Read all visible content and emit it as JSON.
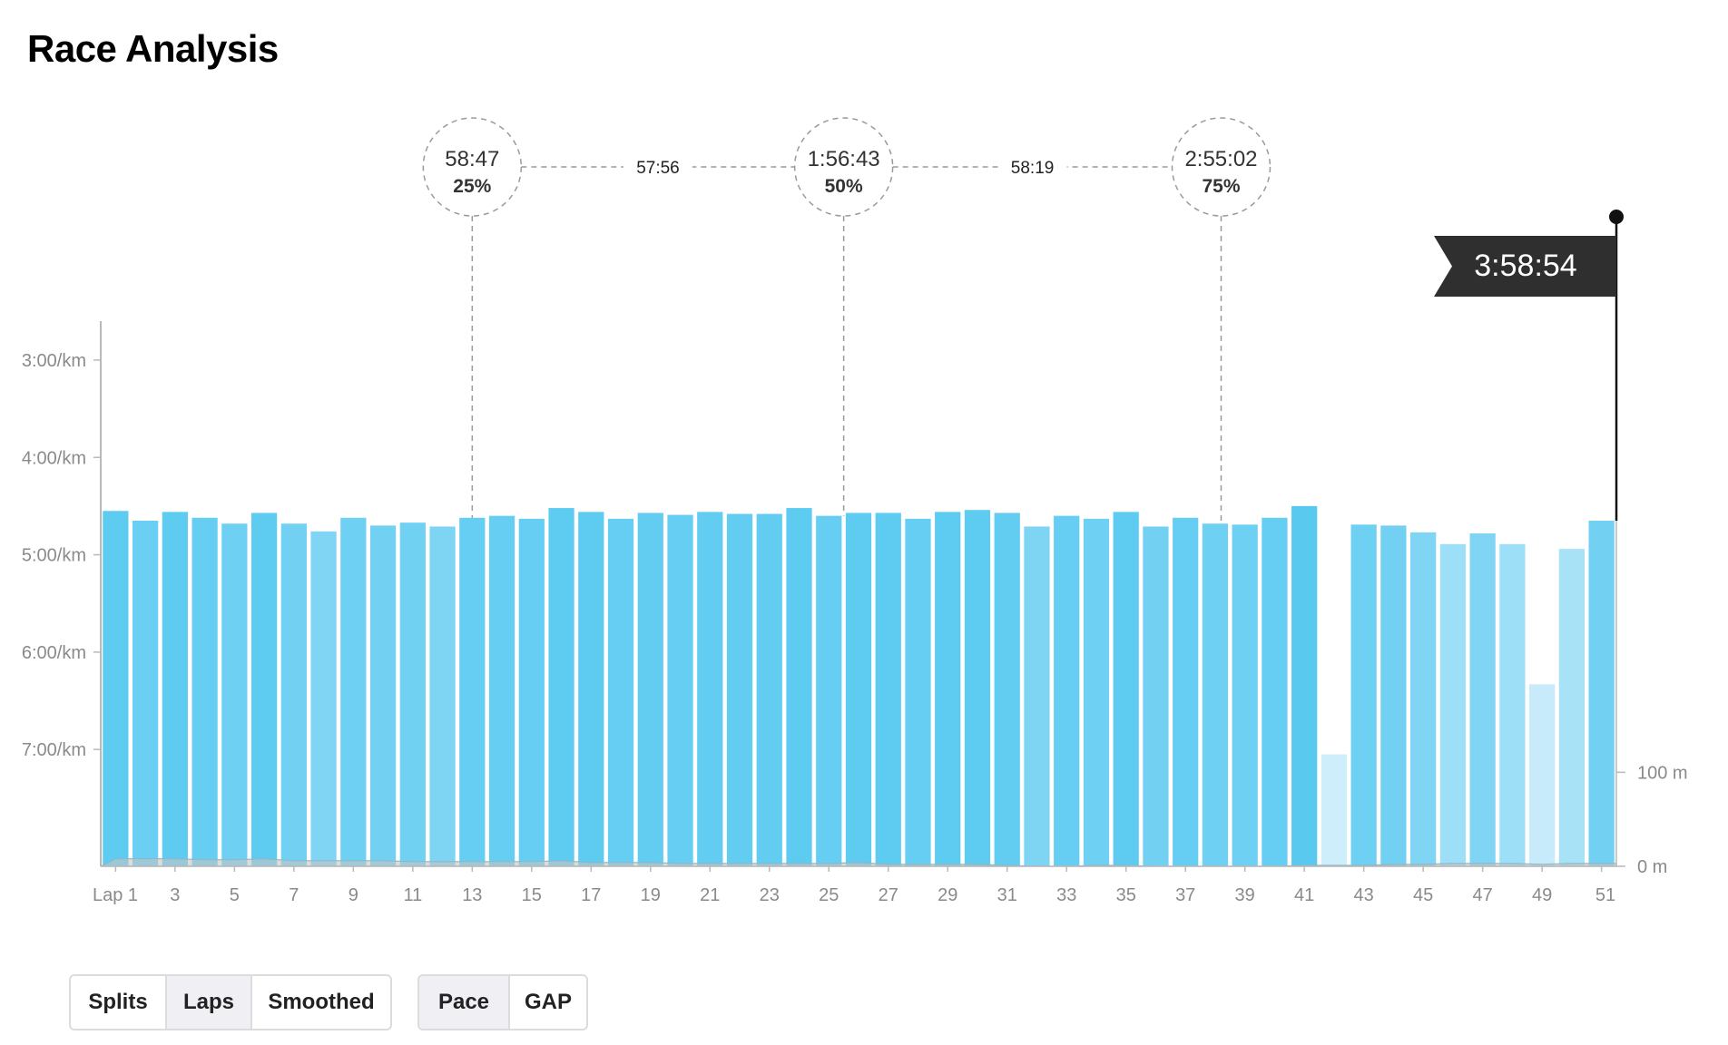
{
  "page": {
    "title": "Race Analysis"
  },
  "finish": {
    "time": "3:58:54"
  },
  "milestones": [
    {
      "time": "58:47",
      "percent": "25%",
      "lap": 13
    },
    {
      "time": "1:56:43",
      "percent": "50%",
      "lap": 25.5
    },
    {
      "time": "2:55:02",
      "percent": "75%",
      "lap": 38.2
    }
  ],
  "segment_times": [
    "57:56",
    "58:19"
  ],
  "controls": {
    "view_group": [
      {
        "label": "Splits",
        "active": false
      },
      {
        "label": "Laps",
        "active": true
      },
      {
        "label": "Smoothed",
        "active": false
      }
    ],
    "metric_group": [
      {
        "label": "Pace",
        "active": true
      },
      {
        "label": "GAP",
        "active": false
      }
    ]
  },
  "chart_data": {
    "type": "bar",
    "title": "",
    "xlabel": "",
    "ylabel": "",
    "categories": [
      "Lap 1",
      "2",
      "3",
      "4",
      "5",
      "6",
      "7",
      "8",
      "9",
      "10",
      "11",
      "12",
      "13",
      "14",
      "15",
      "16",
      "17",
      "18",
      "19",
      "20",
      "21",
      "22",
      "23",
      "24",
      "25",
      "26",
      "27",
      "28",
      "29",
      "30",
      "31",
      "32",
      "33",
      "34",
      "35",
      "36",
      "37",
      "38",
      "39",
      "40",
      "41",
      "42",
      "43",
      "44",
      "45",
      "46",
      "47",
      "48",
      "49",
      "50",
      "51"
    ],
    "x_tick_labels": [
      "Lap 1",
      "3",
      "5",
      "7",
      "9",
      "11",
      "13",
      "15",
      "17",
      "19",
      "21",
      "23",
      "25",
      "27",
      "29",
      "31",
      "33",
      "35",
      "37",
      "39",
      "41",
      "43",
      "45",
      "47",
      "49",
      "51"
    ],
    "pace_axis": {
      "tick_labels": [
        "3:00/km",
        "4:00/km",
        "5:00/km",
        "6:00/km",
        "7:00/km"
      ],
      "tick_values_min": [
        3,
        4,
        5,
        6,
        7
      ],
      "range_min": [
        2.6,
        8.2
      ]
    },
    "elevation_axis": {
      "tick_labels": [
        "100 m",
        "0 m"
      ],
      "tick_values_m": [
        100,
        0
      ],
      "range_m": [
        0,
        580
      ]
    },
    "series": [
      {
        "unit": "min/km",
        "values": [
          4.55,
          4.65,
          4.56,
          4.62,
          4.68,
          4.57,
          4.68,
          4.76,
          4.62,
          4.7,
          4.67,
          4.71,
          4.62,
          4.6,
          4.63,
          4.52,
          4.56,
          4.63,
          4.57,
          4.59,
          4.56,
          4.58,
          4.58,
          4.52,
          4.6,
          4.57,
          4.57,
          4.63,
          4.56,
          4.54,
          4.57,
          4.71,
          4.6,
          4.63,
          4.56,
          4.71,
          4.62,
          4.68,
          4.69,
          4.62,
          4.5,
          7.05,
          4.69,
          4.7,
          4.77,
          4.89,
          4.78,
          4.89,
          6.33,
          4.94,
          4.65
        ],
        "colors": [
          "#5ecbf1",
          "#6acff2",
          "#5ecbf1",
          "#66cef2",
          "#6ed0f2",
          "#5ecbf1",
          "#72d1f3",
          "#80d5f4",
          "#6ed0f2",
          "#72d1f3",
          "#70d1f2",
          "#7dd4f3",
          "#66cef2",
          "#66cef2",
          "#66cef2",
          "#5ecbf1",
          "#5ecbf1",
          "#66cef2",
          "#62ccf1",
          "#66cef2",
          "#62ccf1",
          "#62ccf1",
          "#62ccf1",
          "#5ecbf1",
          "#66cef2",
          "#5ecbf1",
          "#5ecbf1",
          "#66cef2",
          "#5ecbf1",
          "#5ecbf1",
          "#62ccf1",
          "#7dd4f3",
          "#66cef2",
          "#6ed0f2",
          "#5ecbf1",
          "#72d1f3",
          "#66cef2",
          "#6ed0f2",
          "#6ed0f2",
          "#66cef2",
          "#5ac9f0",
          "#cfeefb",
          "#6ed0f2",
          "#72d1f3",
          "#7fd5f3",
          "#9ddff6",
          "#80d5f4",
          "#9ddff6",
          "#c7ebfa",
          "#a8e2f7",
          "#72d1f3"
        ]
      },
      {
        "unit": "m",
        "values": [
          8,
          8,
          8,
          7,
          7,
          8,
          6,
          6,
          6,
          6,
          5,
          5,
          5,
          5,
          5,
          6,
          4,
          4,
          4,
          3,
          3,
          3,
          3,
          3,
          3,
          4,
          2,
          2,
          2,
          2,
          1,
          0,
          0,
          1,
          1,
          0,
          0,
          0,
          0,
          0,
          1,
          1,
          1,
          2,
          2,
          3,
          3,
          3,
          2,
          3,
          3
        ],
        "color": "#c4c4c4"
      }
    ]
  }
}
